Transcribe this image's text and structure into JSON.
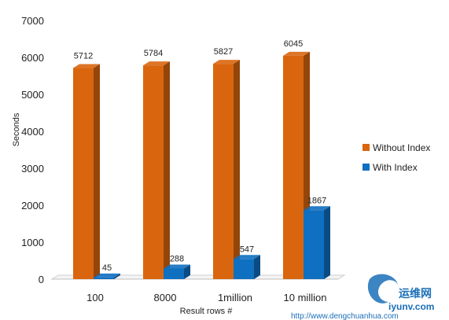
{
  "chart_data": {
    "type": "bar",
    "categories": [
      "100",
      "8000",
      "1million",
      "10 million"
    ],
    "series": [
      {
        "name": "Without Index",
        "values": [
          5712,
          5784,
          5827,
          6045
        ],
        "color": "#d9660f"
      },
      {
        "name": "With Index",
        "values": [
          45,
          288,
          547,
          1867
        ],
        "color": "#0f6fc0"
      }
    ],
    "data_labels": [
      [
        "5712",
        "5784",
        "5827",
        "6045"
      ],
      [
        "45",
        "288",
        "547",
        "1867"
      ]
    ],
    "xlabel": "Result rows #",
    "ylabel": "Seconds",
    "ylim": [
      0,
      7000
    ],
    "yticks": [
      "0",
      "1000",
      "2000",
      "3000",
      "4000",
      "5000",
      "6000",
      "7000"
    ],
    "grid": false,
    "legend_position": "right",
    "style": "3d"
  },
  "watermark": {
    "brand_text": "运维网",
    "site_text": "iyunv.com",
    "url_text": "http://www.dengchuanhua.com"
  }
}
